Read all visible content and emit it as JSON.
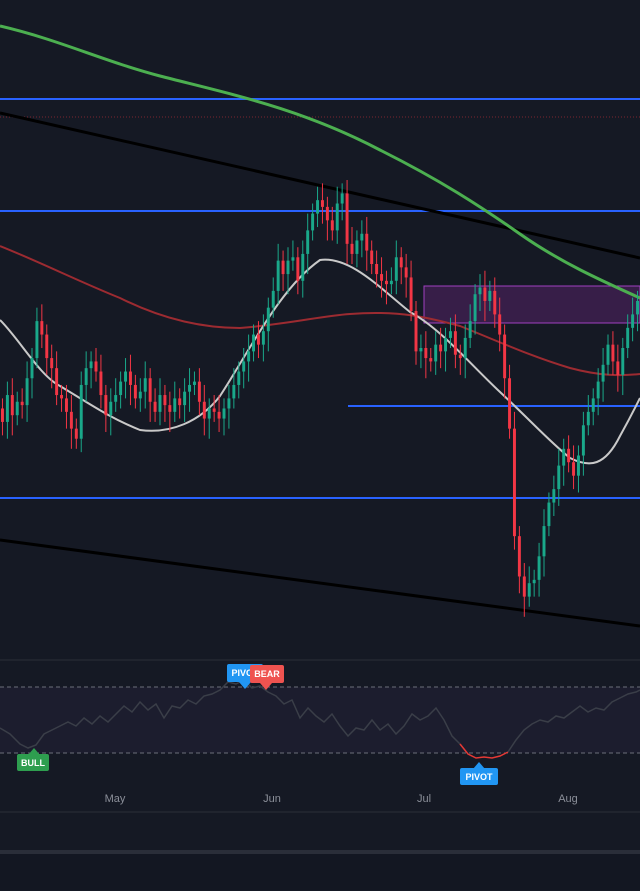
{
  "colors": {
    "background": "#151924",
    "up_candle": "#1aa88a",
    "down_candle": "#f23645",
    "sma_green": "#4caf50",
    "ma_red": "#9c2b31",
    "ma_white": "#c9c9c9",
    "level_blue": "#2962ff",
    "trendline": "#000000",
    "zone_fill": "#3b1f4d",
    "zone_border": "#a040c0",
    "rsi_line": "#3a3e48",
    "rsi_oversold": "#e53935",
    "bull_tag": "#2e9e4f",
    "bear_tag": "#ef5350",
    "pivot_tag": "#2196f3"
  },
  "xaxis": {
    "months": [
      "May",
      "Jun",
      "Jul",
      "Aug"
    ]
  },
  "tags": {
    "bull": "BULL",
    "pivot": "PIVOT",
    "bear": "BEAR"
  },
  "chart_data": {
    "type": "candlestick",
    "title": "",
    "xlabel": "",
    "ylabel": "",
    "ylim": [
      0,
      100
    ],
    "grid": false,
    "close": [
      38,
      46,
      40,
      44,
      43,
      51,
      57,
      68,
      64,
      57,
      54,
      46,
      45,
      41,
      36,
      33,
      49,
      54,
      56,
      53,
      46,
      40,
      44,
      46,
      50,
      53,
      49,
      45,
      47,
      51,
      44,
      41,
      46,
      43,
      41,
      45,
      43,
      47,
      49,
      50,
      44,
      39,
      42,
      41,
      39,
      42,
      45,
      49,
      53,
      56,
      59,
      64,
      61,
      65,
      72,
      77,
      86,
      82,
      86,
      87,
      80,
      88,
      95,
      100,
      104,
      102,
      98,
      95,
      103,
      106,
      91,
      88,
      92,
      94,
      89,
      85,
      82,
      80,
      79,
      80,
      87,
      84,
      81,
      71,
      59,
      60,
      57,
      56,
      61,
      59,
      63,
      65,
      58,
      57,
      63,
      68,
      76,
      78,
      74,
      77,
      70,
      64,
      51,
      36,
      4,
      -8,
      -14,
      -10,
      -9,
      -2,
      7,
      14,
      18,
      25,
      30,
      26,
      22,
      28,
      37,
      41,
      45,
      50,
      55,
      61,
      56,
      52,
      60,
      66,
      70,
      74
    ]
  }
}
